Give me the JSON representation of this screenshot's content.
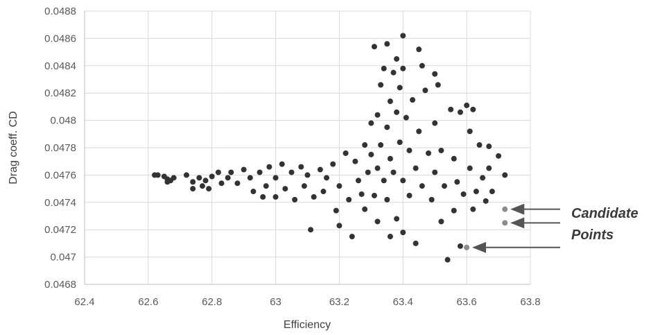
{
  "chart_data": {
    "type": "scatter",
    "xlabel": "Efficiency",
    "ylabel": "Drag coeff. CD",
    "xlim": [
      62.4,
      63.8
    ],
    "ylim": [
      0.0468,
      0.0488
    ],
    "x_ticks": [
      "62.4",
      "62.6",
      "62.8",
      "63",
      "63.2",
      "63.4",
      "63.6",
      "63.8"
    ],
    "y_ticks": [
      "0.0468",
      "0.047",
      "0.0472",
      "0.0474",
      "0.0476",
      "0.0478",
      "0.048",
      "0.0482",
      "0.0484",
      "0.0486",
      "0.0488"
    ],
    "grid": true,
    "legend": "none",
    "series": [
      {
        "color": "#333333",
        "points": [
          [
            62.62,
            0.0476
          ],
          [
            62.63,
            0.0476
          ],
          [
            62.65,
            0.04759
          ],
          [
            62.66,
            0.04757
          ],
          [
            62.67,
            0.04756
          ],
          [
            62.68,
            0.04758
          ],
          [
            62.66,
            0.04755
          ],
          [
            62.72,
            0.0476
          ],
          [
            62.74,
            0.04755
          ],
          [
            62.74,
            0.0475
          ],
          [
            62.76,
            0.04758
          ],
          [
            62.77,
            0.04752
          ],
          [
            62.78,
            0.04756
          ],
          [
            62.79,
            0.0475
          ],
          [
            62.8,
            0.04759
          ],
          [
            62.82,
            0.04762
          ],
          [
            62.83,
            0.04754
          ],
          [
            62.85,
            0.04758
          ],
          [
            62.86,
            0.04762
          ],
          [
            62.88,
            0.04754
          ],
          [
            62.9,
            0.04764
          ],
          [
            62.92,
            0.04758
          ],
          [
            62.93,
            0.04748
          ],
          [
            62.95,
            0.04762
          ],
          [
            62.96,
            0.04744
          ],
          [
            62.97,
            0.04752
          ],
          [
            62.98,
            0.04766
          ],
          [
            63.0,
            0.04758
          ],
          [
            63.0,
            0.04744
          ],
          [
            63.02,
            0.04768
          ],
          [
            63.03,
            0.0475
          ],
          [
            63.05,
            0.04762
          ],
          [
            63.06,
            0.04742
          ],
          [
            63.08,
            0.04766
          ],
          [
            63.09,
            0.04752
          ],
          [
            63.1,
            0.0476
          ],
          [
            63.11,
            0.0472
          ],
          [
            63.12,
            0.04744
          ],
          [
            63.14,
            0.04764
          ],
          [
            63.15,
            0.04748
          ],
          [
            63.16,
            0.04758
          ],
          [
            63.18,
            0.04768
          ],
          [
            63.19,
            0.04734
          ],
          [
            63.2,
            0.04752
          ],
          [
            63.2,
            0.04723
          ],
          [
            63.22,
            0.04776
          ],
          [
            63.23,
            0.04742
          ],
          [
            63.24,
            0.04715
          ],
          [
            63.25,
            0.0477
          ],
          [
            63.26,
            0.04756
          ],
          [
            63.27,
            0.04746
          ],
          [
            63.28,
            0.04782
          ],
          [
            63.28,
            0.04735
          ],
          [
            63.29,
            0.04762
          ],
          [
            63.3,
            0.04775
          ],
          [
            63.3,
            0.04798
          ],
          [
            63.31,
            0.04745
          ],
          [
            63.31,
            0.04854
          ],
          [
            63.32,
            0.04804
          ],
          [
            63.32,
            0.04765
          ],
          [
            63.32,
            0.04726
          ],
          [
            63.33,
            0.04782
          ],
          [
            63.33,
            0.04826
          ],
          [
            63.34,
            0.04756
          ],
          [
            63.34,
            0.04838
          ],
          [
            63.35,
            0.04856
          ],
          [
            63.35,
            0.04795
          ],
          [
            63.35,
            0.04742
          ],
          [
            63.36,
            0.04772
          ],
          [
            63.36,
            0.04814
          ],
          [
            63.36,
            0.04715
          ],
          [
            63.37,
            0.04835
          ],
          [
            63.37,
            0.04762
          ],
          [
            63.38,
            0.04806
          ],
          [
            63.38,
            0.04845
          ],
          [
            63.38,
            0.04728
          ],
          [
            63.39,
            0.04784
          ],
          [
            63.39,
            0.04824
          ],
          [
            63.4,
            0.04838
          ],
          [
            63.4,
            0.04862
          ],
          [
            63.4,
            0.04756
          ],
          [
            63.4,
            0.04718
          ],
          [
            63.41,
            0.04802
          ],
          [
            63.42,
            0.04778
          ],
          [
            63.42,
            0.04745
          ],
          [
            63.43,
            0.04815
          ],
          [
            63.44,
            0.04765
          ],
          [
            63.44,
            0.0471
          ],
          [
            63.45,
            0.04852
          ],
          [
            63.45,
            0.04792
          ],
          [
            63.46,
            0.0484
          ],
          [
            63.46,
            0.04752
          ],
          [
            63.47,
            0.04822
          ],
          [
            63.48,
            0.04776
          ],
          [
            63.49,
            0.04742
          ],
          [
            63.5,
            0.04834
          ],
          [
            63.5,
            0.04798
          ],
          [
            63.5,
            0.04762
          ],
          [
            63.51,
            0.04826
          ],
          [
            63.52,
            0.04778
          ],
          [
            63.52,
            0.04726
          ],
          [
            63.53,
            0.04752
          ],
          [
            63.54,
            0.04698
          ],
          [
            63.55,
            0.04808
          ],
          [
            63.56,
            0.04772
          ],
          [
            63.56,
            0.04734
          ],
          [
            63.57,
            0.04755
          ],
          [
            63.58,
            0.04806
          ],
          [
            63.58,
            0.04708
          ],
          [
            63.59,
            0.04746
          ],
          [
            63.6,
            0.04811
          ],
          [
            63.61,
            0.04792
          ],
          [
            63.61,
            0.04765
          ],
          [
            63.62,
            0.04735
          ],
          [
            63.62,
            0.04808
          ],
          [
            63.63,
            0.04748
          ],
          [
            63.64,
            0.04782
          ],
          [
            63.65,
            0.04758
          ],
          [
            63.66,
            0.04741
          ],
          [
            63.67,
            0.04765
          ],
          [
            63.67,
            0.04781
          ],
          [
            63.68,
            0.04748
          ],
          [
            63.7,
            0.04774
          ],
          [
            63.72,
            0.0476
          ]
        ]
      },
      {
        "name": "Candidate Points",
        "color": "#8c8c8c",
        "points": [
          [
            63.6,
            0.04707
          ],
          [
            63.72,
            0.04725
          ],
          [
            63.72,
            0.04735
          ]
        ]
      }
    ],
    "annotations": [
      {
        "text_lines": [
          "Candidate",
          "Points"
        ],
        "arrow_targets": [
          [
            63.6,
            0.04707
          ],
          [
            63.72,
            0.04725
          ],
          [
            63.72,
            0.04735
          ]
        ]
      }
    ]
  }
}
